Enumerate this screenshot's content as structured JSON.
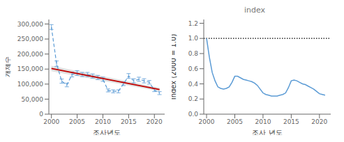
{
  "chart_data": [
    {
      "type": "line",
      "xlabel": "조사년도",
      "ylabel": "개체수",
      "x": [
        2000,
        2001,
        2002,
        2003,
        2004,
        2005,
        2006,
        2007,
        2008,
        2009,
        2010,
        2011,
        2012,
        2013,
        2014,
        2015,
        2016,
        2017,
        2018,
        2019,
        2020,
        2021
      ],
      "values": [
        290000,
        168000,
        110000,
        97000,
        132000,
        137000,
        132000,
        132000,
        127000,
        122000,
        116000,
        79000,
        76000,
        76000,
        101000,
        127000,
        111000,
        116000,
        111000,
        106000,
        80000,
        70000
      ],
      "yerr": [
        8000,
        9000,
        7000,
        6000,
        8000,
        8000,
        7000,
        7000,
        7000,
        7000,
        7000,
        5000,
        5000,
        5000,
        6000,
        8000,
        7000,
        7000,
        7000,
        6000,
        5000,
        5000
      ],
      "color": "#5b9bd5",
      "line_style": "dashed",
      "trend": {
        "x": [
          2000,
          2021
        ],
        "values": [
          152000,
          82000
        ],
        "ci_low": [
          143000,
          76000
        ],
        "ci_high": [
          161000,
          88000
        ],
        "color": "#c00000"
      },
      "xlim": [
        1999.5,
        2022
      ],
      "ylim": [
        0,
        315000
      ],
      "xticks": [
        2000,
        2005,
        2010,
        2015,
        2020
      ],
      "yticks": [
        0,
        {
          "value": 50000,
          "label": "50,000"
        },
        {
          "value": 100000,
          "label": "100,000"
        },
        {
          "value": 150000,
          "label": "150,000"
        },
        {
          "value": 200000,
          "label": "200,000"
        },
        {
          "value": 250000,
          "label": "250,000"
        },
        {
          "value": 300000,
          "label": "300,000"
        }
      ]
    },
    {
      "type": "line",
      "title": "index",
      "xlabel": "조사 년도",
      "ylabel": "Index (2000 = 1.0)",
      "x": [
        2000.0,
        2000.5,
        2001.0,
        2001.5,
        2002.0,
        2002.5,
        2003.0,
        2003.5,
        2004.0,
        2004.5,
        2005.0,
        2005.5,
        2006.0,
        2006.5,
        2007.0,
        2007.5,
        2008.0,
        2008.5,
        2009.0,
        2009.5,
        2010.0,
        2010.5,
        2011.0,
        2011.5,
        2012.0,
        2012.5,
        2013.0,
        2013.5,
        2014.0,
        2014.5,
        2015.0,
        2015.5,
        2016.0,
        2016.5,
        2017.0,
        2017.5,
        2018.0,
        2018.5,
        2019.0,
        2019.5,
        2020.0,
        2020.5,
        2021.0
      ],
      "values": [
        1.0,
        0.75,
        0.55,
        0.44,
        0.36,
        0.34,
        0.33,
        0.34,
        0.36,
        0.42,
        0.5,
        0.5,
        0.48,
        0.46,
        0.45,
        0.44,
        0.43,
        0.41,
        0.38,
        0.33,
        0.28,
        0.26,
        0.25,
        0.24,
        0.24,
        0.24,
        0.25,
        0.26,
        0.28,
        0.35,
        0.44,
        0.45,
        0.44,
        0.42,
        0.4,
        0.39,
        0.37,
        0.35,
        0.33,
        0.3,
        0.27,
        0.26,
        0.25
      ],
      "color": "#5b9bd5",
      "line_style": "solid",
      "hline": {
        "value": 1.0,
        "color": "#000000",
        "line_style": "dotted"
      },
      "xlim": [
        1999.5,
        2022
      ],
      "ylim": [
        0.0,
        1.25
      ],
      "xticks": [
        2000,
        2005,
        2010,
        2015,
        2020
      ],
      "yticks": [
        {
          "value": 0.0,
          "label": "0.0"
        },
        0.2,
        0.4,
        0.6,
        0.8,
        {
          "value": 1.0,
          "label": "1.0"
        },
        1.2
      ]
    }
  ]
}
